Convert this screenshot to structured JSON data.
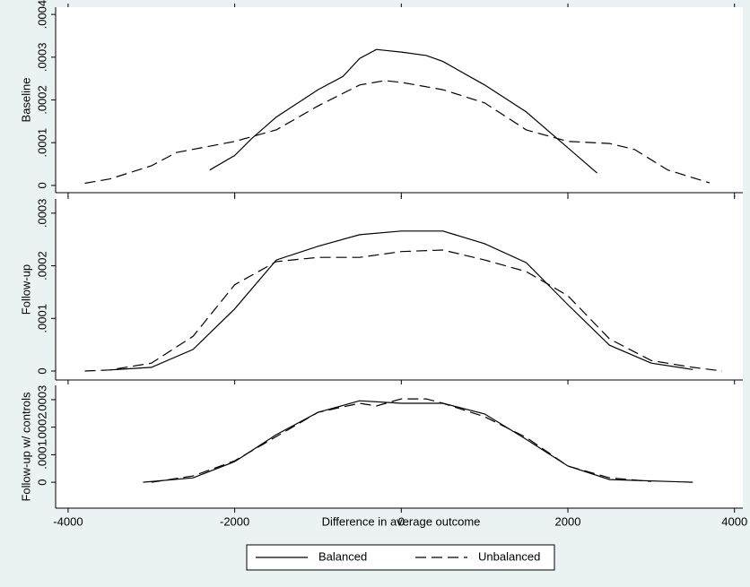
{
  "chart_data": [
    {
      "type": "line",
      "ylabel": "Baseline",
      "xlim": [
        -4150,
        4100
      ],
      "ylim": [
        -1.7e-05,
        0.000417
      ],
      "yticks": [
        0,
        {
          "value": 0.0001,
          "label": ".0001"
        },
        {
          "value": 0.0002,
          "label": ".0002"
        },
        {
          "value": 0.0003,
          "label": ".0003"
        },
        {
          "value": 0.0004,
          "label": ".0004"
        }
      ],
      "series": [
        {
          "color": "#000000",
          "style": "solid",
          "x": [
            -2300,
            -2000,
            -1800,
            -1500,
            -1000,
            -700,
            -500,
            -300,
            -200,
            0,
            300,
            500,
            1000,
            1500,
            2000,
            2350
          ],
          "values": [
            3.6e-05,
            7e-05,
            0.000109,
            0.00016,
            0.000224,
            0.000255,
            0.000297,
            0.000318,
            0.000316,
            0.000312,
            0.000304,
            0.00029,
            0.000235,
            0.000172,
            8.8e-05,
            2.9e-05
          ]
        },
        {
          "color": "#000000",
          "style": "dashed",
          "x": [
            -3800,
            -3500,
            -3000,
            -2700,
            -2400,
            -2000,
            -1500,
            -1000,
            -500,
            -200,
            0,
            500,
            1000,
            1500,
            2000,
            2500,
            2800,
            3200,
            3700
          ],
          "values": [
            5e-06,
            1.5e-05,
            4.6e-05,
            7.7e-05,
            8.8e-05,
            0.000103,
            0.00013,
            0.000186,
            0.000235,
            0.000245,
            0.000241,
            0.000224,
            0.000193,
            0.00013,
            0.000103,
            9.8e-05,
            8.4e-05,
            3.6e-05,
            6e-06
          ]
        }
      ]
    },
    {
      "type": "line",
      "ylabel": "Follow-up",
      "xlim": [
        -4150,
        4100
      ],
      "ylim": [
        -1.7e-05,
        0.000327
      ],
      "yticks": [
        0,
        {
          "value": 0.0001,
          "label": ".0001"
        },
        {
          "value": 0.0002,
          "label": ".0002"
        },
        {
          "value": 0.0003,
          "label": ".0003"
        }
      ],
      "series": [
        {
          "color": "#000000",
          "style": "solid",
          "x": [
            -3500,
            -3000,
            -2500,
            -2000,
            -1500,
            -1000,
            -500,
            0,
            500,
            1000,
            1500,
            2000,
            2500,
            3000,
            3500
          ],
          "values": [
            2e-06,
            7e-06,
            4.1e-05,
            0.000118,
            0.000211,
            0.000237,
            0.000259,
            0.000266,
            0.000266,
            0.000242,
            0.000206,
            0.000126,
            4.9e-05,
            1.5e-05,
            3e-06
          ]
        },
        {
          "color": "#000000",
          "style": "dashed",
          "x": [
            -3800,
            -3500,
            -3000,
            -2500,
            -2000,
            -1500,
            -1000,
            -500,
            0,
            500,
            1000,
            1500,
            2000,
            2500,
            3000,
            3500,
            3850
          ],
          "values": [
            0,
            2e-06,
            1.5e-05,
            6.6e-05,
            0.000164,
            0.000208,
            0.000216,
            0.000216,
            0.000227,
            0.00023,
            0.000211,
            0.000189,
            0.000143,
            6.1e-05,
            2e-05,
            7e-06,
            0
          ]
        }
      ]
    },
    {
      "type": "line",
      "ylabel": "Follow-up w/ controls",
      "xlabel": "Difference in average outcome",
      "xlim": [
        -4150,
        4100
      ],
      "xticks": [
        -4000,
        -2000,
        0,
        2000,
        4000
      ],
      "ylim": [
        -9.4e-05,
        0.000352
      ],
      "yticks": [
        0,
        {
          "value": 0.0001,
          "label": ".0001"
        },
        {
          "value": 0.0002,
          "label": ".0002"
        },
        {
          "value": 0.0003,
          "label": ".0003"
        }
      ],
      "series": [
        {
          "name": "Balanced",
          "color": "#000000",
          "style": "solid",
          "x": [
            -3100,
            -2500,
            -2000,
            -1500,
            -1000,
            -500,
            0,
            500,
            1000,
            1500,
            2000,
            2500,
            3500
          ],
          "values": [
            0,
            1.6e-05,
            7.5e-05,
            0.000173,
            0.000254,
            0.000296,
            0.000287,
            0.000287,
            0.000248,
            0.000156,
            5.9e-05,
            1e-05,
            0
          ]
        },
        {
          "name": "Unbalanced",
          "color": "#000000",
          "style": "dashed",
          "x": [
            -3000,
            -2500,
            -2000,
            -1500,
            -1000,
            -500,
            -300,
            0,
            300,
            500,
            1000,
            1500,
            2000,
            2500,
            3000
          ],
          "values": [
            0,
            2.3e-05,
            7.8e-05,
            0.000166,
            0.000254,
            0.000287,
            0.000277,
            0.000303,
            0.000303,
            0.000287,
            0.000238,
            0.000163,
            5.9e-05,
            1.6e-05,
            3e-06
          ]
        }
      ]
    }
  ]
}
